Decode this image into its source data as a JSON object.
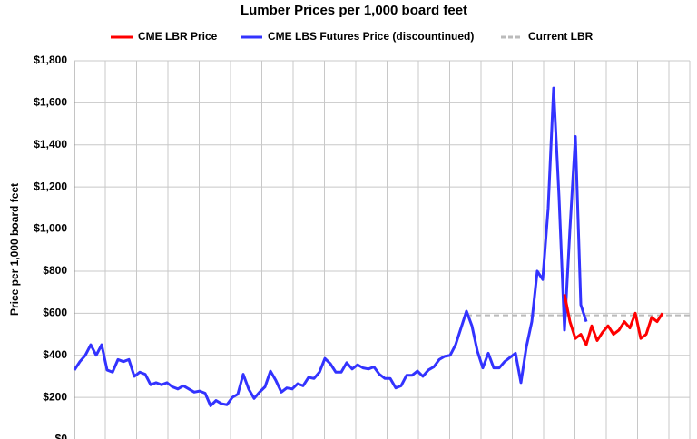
{
  "chart_data": {
    "type": "line",
    "title": "Lumber Prices per 1,000 board feet",
    "y_label": "Price per 1,000 board feet",
    "ylim": [
      0,
      1800
    ],
    "yticks": [
      {
        "value": 0,
        "label": "$0"
      },
      {
        "value": 200,
        "label": "$200"
      },
      {
        "value": 400,
        "label": "$400"
      },
      {
        "value": 600,
        "label": "$600"
      },
      {
        "value": 800,
        "label": "$800"
      },
      {
        "value": 1000,
        "label": "$1,000"
      },
      {
        "value": 1200,
        "label": "$1,200"
      },
      {
        "value": 1400,
        "label": "$1,400"
      },
      {
        "value": 1600,
        "label": "$1,600"
      },
      {
        "value": 1800,
        "label": "$1,800"
      }
    ],
    "grid": true,
    "legend": "top",
    "series": [
      {
        "name": "CME LBR Price",
        "color": "#ff0000",
        "values": [
          null,
          null,
          null,
          null,
          null,
          null,
          null,
          null,
          null,
          null,
          null,
          null,
          null,
          null,
          null,
          null,
          null,
          null,
          null,
          null,
          null,
          null,
          null,
          null,
          null,
          null,
          null,
          null,
          null,
          null,
          null,
          null,
          null,
          null,
          null,
          null,
          null,
          null,
          null,
          null,
          null,
          null,
          null,
          null,
          null,
          null,
          null,
          null,
          null,
          null,
          null,
          null,
          null,
          null,
          null,
          null,
          null,
          null,
          null,
          null,
          null,
          null,
          null,
          null,
          null,
          null,
          null,
          null,
          null,
          null,
          null,
          null,
          null,
          null,
          null,
          null,
          null,
          null,
          null,
          null,
          null,
          null,
          null,
          null,
          null,
          null,
          null,
          null,
          null,
          null,
          690,
          560,
          480,
          500,
          450,
          540,
          470,
          510,
          540,
          500,
          520,
          560,
          530,
          600,
          480,
          500,
          580,
          560,
          600
        ]
      },
      {
        "name": "CME LBS Futures Price (discountinued)",
        "color": "#3333ff",
        "values": [
          330,
          370,
          400,
          450,
          400,
          450,
          330,
          320,
          380,
          370,
          380,
          300,
          320,
          310,
          260,
          270,
          260,
          270,
          250,
          240,
          255,
          240,
          225,
          230,
          220,
          160,
          185,
          170,
          165,
          200,
          215,
          310,
          240,
          195,
          225,
          250,
          325,
          280,
          225,
          245,
          240,
          265,
          255,
          295,
          290,
          320,
          385,
          360,
          320,
          320,
          365,
          335,
          355,
          340,
          335,
          345,
          310,
          290,
          290,
          245,
          255,
          305,
          305,
          325,
          300,
          330,
          345,
          380,
          395,
          400,
          450,
          530,
          610,
          540,
          420,
          340,
          410,
          340,
          340,
          370,
          390,
          410,
          270,
          440,
          560,
          800,
          760,
          1100,
          1670,
          1150,
          520,
          1000,
          1440,
          640,
          560,
          null,
          null,
          null,
          null,
          null,
          null,
          null,
          null,
          null,
          null,
          null,
          null,
          null,
          null
        ]
      }
    ],
    "reference_line": {
      "name": "Current LBR",
      "value": 590,
      "color": "#bbbbbb"
    }
  }
}
